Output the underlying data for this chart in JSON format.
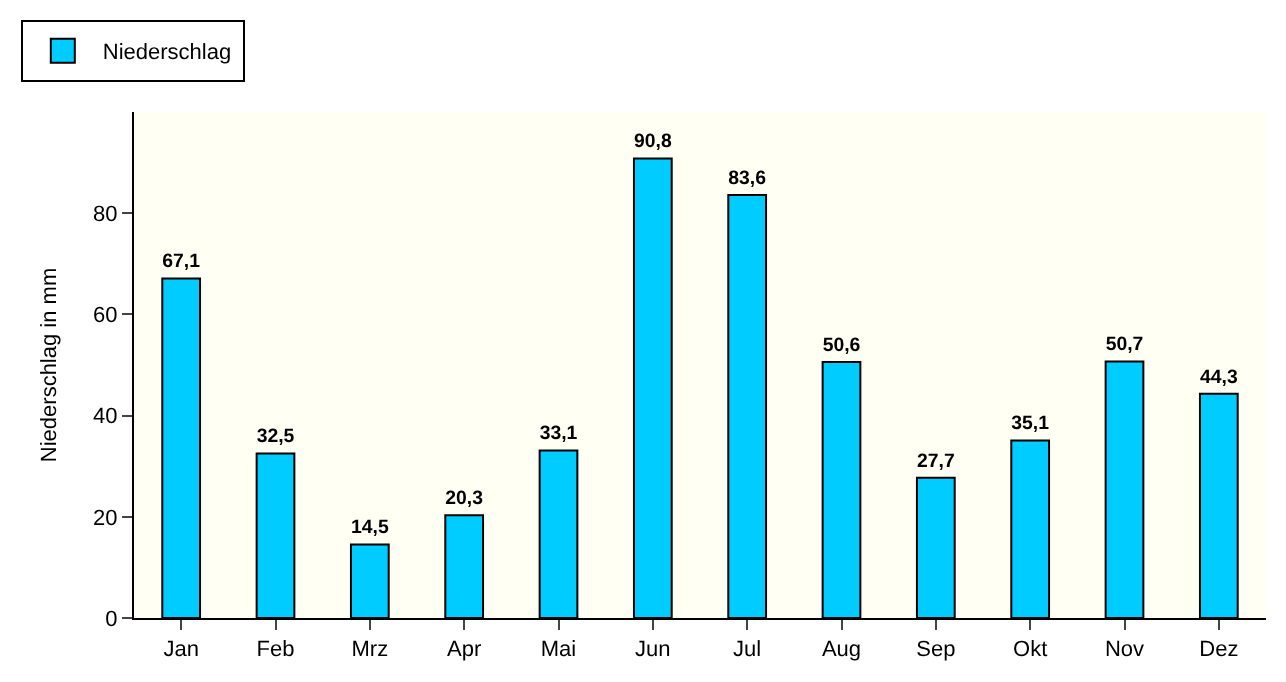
{
  "chart_data": {
    "type": "bar",
    "ylabel": "Niederschlag in mm",
    "categories": [
      "Jan",
      "Feb",
      "Mrz",
      "Apr",
      "Mai",
      "Jun",
      "Jul",
      "Aug",
      "Sep",
      "Okt",
      "Nov",
      "Dez"
    ],
    "series": [
      {
        "name": "Niederschlag",
        "color": "#00ccff",
        "values": [
          67.1,
          32.5,
          14.5,
          20.3,
          33.1,
          90.8,
          83.6,
          50.6,
          27.7,
          35.1,
          50.7,
          44.3
        ],
        "value_labels": [
          "67,1",
          "32,5",
          "14,5",
          "20,3",
          "33,1",
          "90,8",
          "83,6",
          "50,6",
          "27,7",
          "35,1",
          "50,7",
          "44,3"
        ]
      }
    ],
    "ylim": [
      0,
      100
    ],
    "yticks": [
      0,
      20,
      40,
      60,
      80
    ],
    "grid": false,
    "legend": "top left"
  }
}
